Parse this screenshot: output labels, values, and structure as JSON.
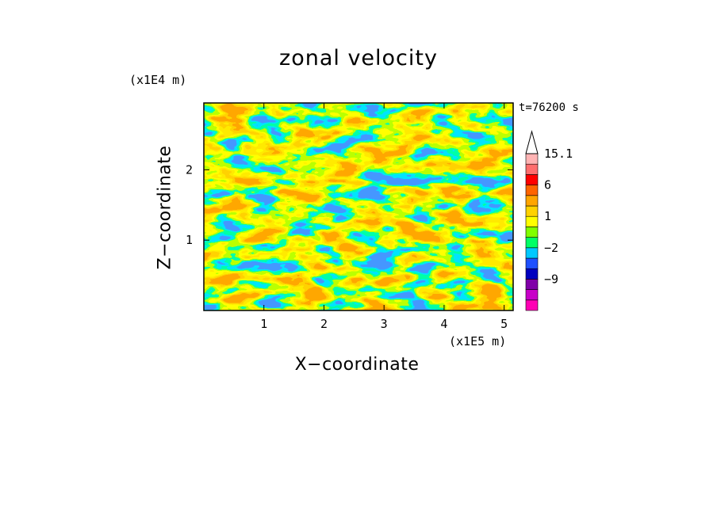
{
  "chart_data": {
    "type": "heatmap",
    "title": "zonal velocity",
    "xlabel": "X−coordinate",
    "ylabel": "Z−coordinate",
    "x_unit": "(x1E5 m)",
    "y_unit": "(x1E4 m)",
    "time_label": "t=76200 s",
    "xlim": [
      0,
      5.15
    ],
    "ylim": [
      0,
      2.95
    ],
    "x_ticks": [
      1,
      2,
      3,
      4,
      5
    ],
    "x_tick_labels": [
      "1",
      "2",
      "3",
      "4",
      "5"
    ],
    "y_ticks": [
      1,
      2
    ],
    "y_tick_labels": [
      "1",
      "2"
    ],
    "colorbar": {
      "levels": [
        -15,
        -12,
        -9,
        -6,
        -4,
        -2,
        -1,
        0,
        1,
        2,
        3,
        6,
        9,
        12,
        15.1
      ],
      "tick_labels": [
        "15.1",
        "6",
        "1",
        "−2",
        "−9"
      ],
      "tick_values": [
        15.1,
        6,
        1,
        -2,
        -9
      ],
      "colors": [
        "#ff00b4",
        "#c800c8",
        "#8000a8",
        "#0000c0",
        "#1e50ff",
        "#00c8ff",
        "#00ff64",
        "#80ff00",
        "#ffff00",
        "#ffd200",
        "#ffa500",
        "#ff6400",
        "#ff0000",
        "#ff6e6e",
        "#ffb4b4"
      ],
      "extend": "max"
    }
  }
}
